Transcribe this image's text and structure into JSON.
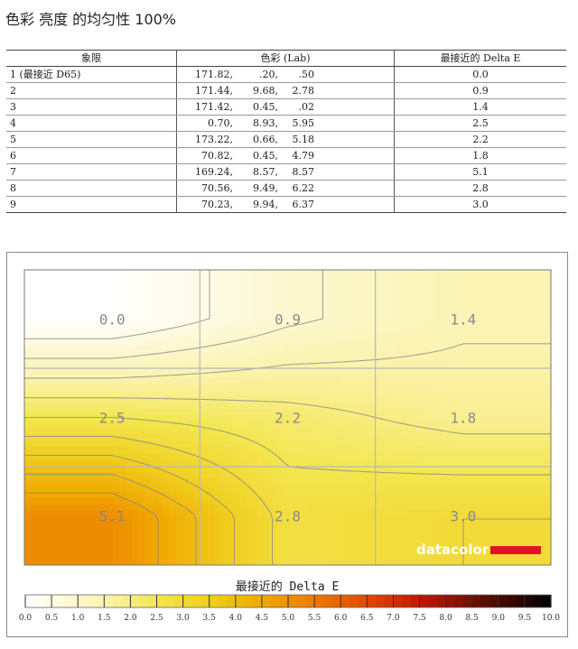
{
  "title": "色彩 亮度 的均匀性 100%",
  "table": {
    "headers": [
      "象限",
      "色彩 (Lab)",
      "最接近的 Delta E"
    ],
    "rows": [
      {
        "quadrant": "1 (最接近 D65)",
        "L": "171.82,",
        "a": ".20,",
        "b": ".50",
        "de": "0.0"
      },
      {
        "quadrant": "2",
        "L": "171.44,",
        "a": "9.68,",
        "b": "2.78",
        "de": "0.9"
      },
      {
        "quadrant": "3",
        "L": "171.42,",
        "a": "0.45,",
        "b": ".02",
        "de": "1.4"
      },
      {
        "quadrant": "4",
        "L": "0.70,",
        "a": "8.93,",
        "b": "5.95",
        "de": "2.5"
      },
      {
        "quadrant": "5",
        "L": "173.22,",
        "a": "0.66,",
        "b": "5.18",
        "de": "2.2"
      },
      {
        "quadrant": "6",
        "L": "70.82,",
        "a": "0.45,",
        "b": "4.79",
        "de": "1.8"
      },
      {
        "quadrant": "7",
        "L": "169.24,",
        "a": "8.57,",
        "b": "8.57",
        "de": "5.1"
      },
      {
        "quadrant": "8",
        "L": "70.56,",
        "a": "9.49,",
        "b": "6.22",
        "de": "2.8"
      },
      {
        "quadrant": "9",
        "L": "70.23,",
        "a": "9.94,",
        "b": "6.37",
        "de": "3.0"
      }
    ]
  },
  "chart_data": {
    "type": "heatmap",
    "rows": 3,
    "cols": 3,
    "values": [
      [
        0.0,
        0.9,
        1.4
      ],
      [
        2.5,
        2.2,
        1.8
      ],
      [
        5.1,
        2.8,
        3.0
      ]
    ],
    "cell_labels": [
      [
        "0.0",
        "0.9",
        "1.4"
      ],
      [
        "2.5",
        "2.2",
        "1.8"
      ],
      [
        "5.1",
        "2.8",
        "3.0"
      ]
    ],
    "colorbar_label": "最接近的 Delta E",
    "colorbar_range": [
      0,
      10
    ],
    "colorbar_ticks": [
      "0.0",
      "0.5",
      "1.0",
      "1.5",
      "2.0",
      "2.5",
      "3.0",
      "3.5",
      "4.0",
      "4.5",
      "5.0",
      "5.5",
      "6.0",
      "6.5",
      "7.0",
      "7.5",
      "8.0",
      "8.5",
      "9.0",
      "9.5",
      "10.0"
    ],
    "colors": {
      "low": "#ffffff",
      "yellow": "#f0e040",
      "orange": "#f0a000",
      "red": "#e02000",
      "high": "#000000"
    },
    "grid": true
  },
  "watermark": "datacolor"
}
